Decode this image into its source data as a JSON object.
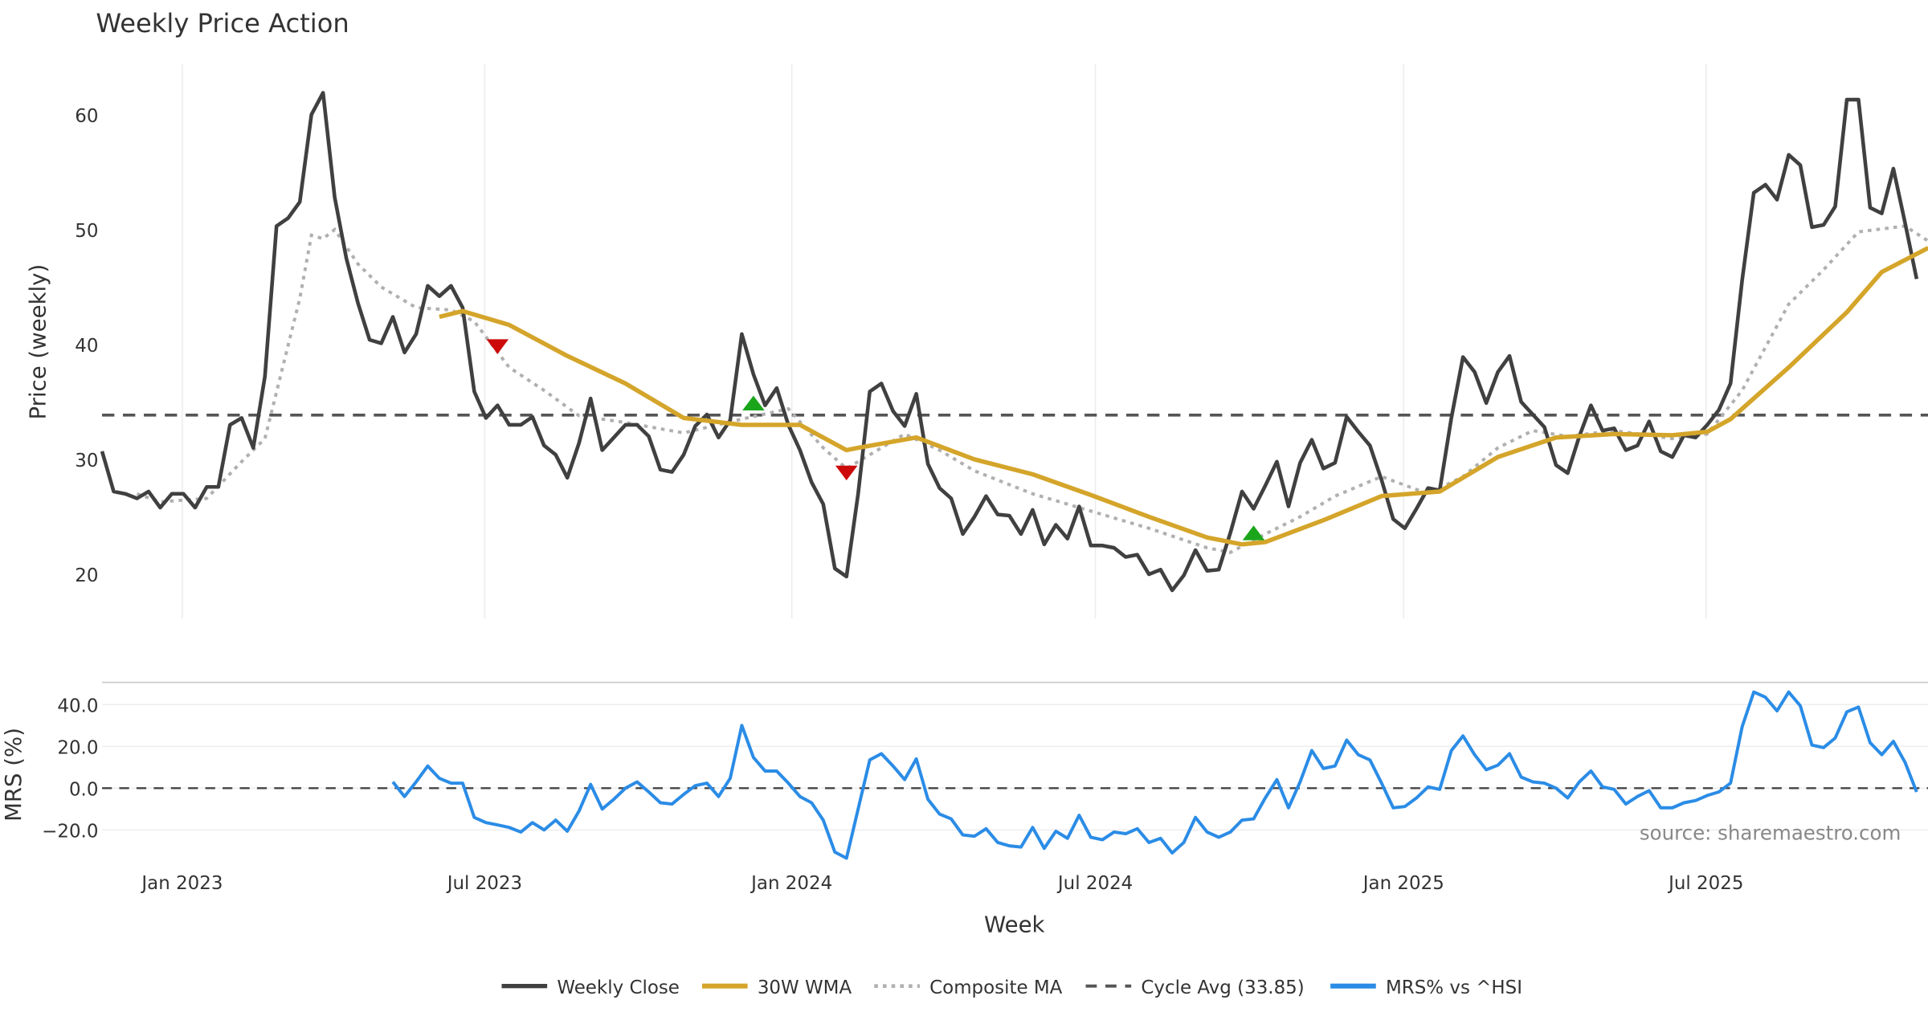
{
  "chart_data": [
    {
      "type": "line",
      "title": "Weekly Price Action",
      "xlabel": "",
      "ylabel": "Price (weekly)",
      "ylim": [
        16.15,
        64.4
      ],
      "yticks": [
        20,
        30,
        40,
        50,
        60
      ],
      "grid": "vertical",
      "x_unit": "week index",
      "weekly_close": [
        30.7,
        27.2,
        27.0,
        26.6,
        27.2,
        25.8,
        27.0,
        27.0,
        25.8,
        27.6,
        27.6,
        33.0,
        33.6,
        31.0,
        37.2,
        50.3,
        51.0,
        52.4,
        60.0,
        61.9,
        52.8,
        47.5,
        43.6,
        40.4,
        40.1,
        42.4,
        39.3,
        40.9,
        45.1,
        44.2,
        45.1,
        43.2,
        35.9,
        33.6,
        34.7,
        33.0,
        33.0,
        33.7,
        31.2,
        30.4,
        28.4,
        31.4,
        35.3,
        30.8,
        31.9,
        33.0,
        33.0,
        32.0,
        29.1,
        28.9,
        30.4,
        32.9,
        33.9,
        31.9,
        33.4,
        40.9,
        37.4,
        34.7,
        36.2,
        33.0,
        30.8,
        28.0,
        26.1,
        20.5,
        19.8,
        27.0,
        35.9,
        36.6,
        34.2,
        32.9,
        35.7,
        29.6,
        27.5,
        26.6,
        23.5,
        25.0,
        26.8,
        25.2,
        25.1,
        23.5,
        25.6,
        22.6,
        24.3,
        23.1,
        25.9,
        22.5,
        22.5,
        22.3,
        21.5,
        21.7,
        20.0,
        20.4,
        18.6,
        19.9,
        22.1,
        20.3,
        20.4,
        23.6,
        27.2,
        25.7,
        27.7,
        29.8,
        25.9,
        29.7,
        31.7,
        29.2,
        29.7,
        33.7,
        32.4,
        31.2,
        28.2,
        24.8,
        24.0,
        25.7,
        27.5,
        27.3,
        33.6,
        38.9,
        37.6,
        34.9,
        37.6,
        39.0,
        35.0,
        33.9,
        32.8,
        29.5,
        28.8,
        32.0,
        34.7,
        32.5,
        32.7,
        30.8,
        31.2,
        33.3,
        30.7,
        30.2,
        32.1,
        31.9,
        33.0,
        34.3,
        36.6,
        45.6,
        53.2,
        53.9,
        52.6,
        56.5,
        55.6,
        50.2,
        50.4,
        52.0,
        61.3,
        61.3,
        51.9,
        51.4,
        55.3,
        50.6,
        45.7
      ],
      "wma_30w": [
        [
          29,
          42.4
        ],
        [
          31,
          42.9
        ],
        [
          35,
          41.7
        ],
        [
          40,
          39.0
        ],
        [
          45,
          36.6
        ],
        [
          50,
          33.6
        ],
        [
          55,
          33.0
        ],
        [
          60,
          33.0
        ],
        [
          64,
          30.8
        ],
        [
          65,
          31.0
        ],
        [
          70,
          31.9
        ],
        [
          75,
          30.0
        ],
        [
          80,
          28.7
        ],
        [
          85,
          26.9
        ],
        [
          90,
          25.0
        ],
        [
          95,
          23.2
        ],
        [
          98,
          22.6
        ],
        [
          100,
          22.8
        ],
        [
          105,
          24.7
        ],
        [
          110,
          26.8
        ],
        [
          115,
          27.2
        ],
        [
          120,
          30.2
        ],
        [
          125,
          31.9
        ],
        [
          130,
          32.2
        ],
        [
          135,
          32.1
        ],
        [
          138,
          32.4
        ],
        [
          140,
          33.5
        ],
        [
          145,
          38.0
        ],
        [
          150,
          42.8
        ],
        [
          153,
          46.3
        ],
        [
          157,
          48.4
        ]
      ],
      "composite_ma": [
        [
          3,
          27.0
        ],
        [
          5,
          26.3
        ],
        [
          9,
          26.6
        ],
        [
          12,
          29.8
        ],
        [
          14,
          31.8
        ],
        [
          17,
          44.0
        ],
        [
          18,
          49.5
        ],
        [
          19,
          49.2
        ],
        [
          20,
          50.0
        ],
        [
          22,
          47.0
        ],
        [
          24,
          45.0
        ],
        [
          27,
          43.2
        ],
        [
          30,
          43.0
        ],
        [
          32,
          42.0
        ],
        [
          35,
          38.0
        ],
        [
          38,
          36.0
        ],
        [
          41,
          33.8
        ],
        [
          45,
          33.2
        ],
        [
          50,
          32.3
        ],
        [
          55,
          33.5
        ],
        [
          59,
          34.4
        ],
        [
          62,
          31.0
        ],
        [
          64,
          29.2
        ],
        [
          67,
          31.0
        ],
        [
          69,
          32.2
        ],
        [
          72,
          30.8
        ],
        [
          75,
          29.0
        ],
        [
          80,
          27.0
        ],
        [
          85,
          25.5
        ],
        [
          90,
          24.0
        ],
        [
          95,
          22.3
        ],
        [
          97,
          21.9
        ],
        [
          100,
          23.5
        ],
        [
          103,
          25.0
        ],
        [
          106,
          26.8
        ],
        [
          110,
          28.5
        ],
        [
          114,
          27.0
        ],
        [
          117,
          28.5
        ],
        [
          120,
          31.0
        ],
        [
          123,
          32.5
        ],
        [
          126,
          32.0
        ],
        [
          130,
          32.5
        ],
        [
          135,
          31.8
        ],
        [
          138,
          32.2
        ],
        [
          141,
          36.0
        ],
        [
          145,
          43.5
        ],
        [
          148,
          46.5
        ],
        [
          151,
          49.8
        ],
        [
          155,
          50.3
        ],
        [
          157,
          49.0
        ]
      ],
      "cycle_avg": 33.85,
      "signals": [
        {
          "type": "sell",
          "week": 34,
          "price": 39.7
        },
        {
          "type": "buy",
          "week": 56,
          "price": 34.9
        },
        {
          "type": "sell",
          "week": 64,
          "price": 28.7
        },
        {
          "type": "buy",
          "week": 99,
          "price": 23.6
        }
      ]
    },
    {
      "type": "line",
      "xlabel": "Week",
      "ylabel": "MRS (%)",
      "ylim": [
        -34.7,
        50.6
      ],
      "yticks": [
        40.0,
        20.0,
        0.0,
        -20.0
      ],
      "ytick_labels": [
        "40.0",
        "20.0",
        "0.0",
        "−20.0"
      ],
      "xticks": [
        6.9,
        32.9,
        59.3,
        85.4,
        111.9,
        137.9
      ],
      "xtick_labels": [
        "Jan 2023",
        "Jul 2023",
        "Jan 2024",
        "Jul 2024",
        "Jan 2025",
        "Jul 2025"
      ],
      "mrs_start_week": 25,
      "mrs": [
        3,
        -4,
        3,
        10.6,
        4.7,
        2.4,
        2.4,
        -14,
        -16.5,
        -17.6,
        -18.8,
        -21,
        -16.5,
        -20,
        -15.3,
        -20.6,
        -11,
        1.8,
        -10,
        -5.3,
        0,
        3,
        -1.8,
        -7,
        -7.6,
        -3,
        1.2,
        2.4,
        -4,
        4.7,
        30,
        14.7,
        8.2,
        8.2,
        2.4,
        -4,
        -7,
        -15.3,
        -30.6,
        -33.5,
        -10,
        13.5,
        16.5,
        10.6,
        4.1,
        14,
        -5.3,
        -12.4,
        -14.7,
        -22.4,
        -23,
        -19.4,
        -26,
        -27.6,
        -28.2,
        -18.8,
        -28.8,
        -20.6,
        -24,
        -13,
        -23.5,
        -24.7,
        -21,
        -21.8,
        -19.4,
        -26,
        -24,
        -31,
        -26,
        -14,
        -21,
        -23.5,
        -21,
        -15.3,
        -14.7,
        -4.7,
        4.1,
        -9.4,
        3,
        18,
        9.4,
        10.6,
        23,
        16,
        13.5,
        2.4,
        -9.4,
        -8.8,
        -4.7,
        0.6,
        -0.6,
        18,
        25,
        16,
        8.8,
        11,
        16.5,
        5.3,
        3,
        2.4,
        0,
        -4.7,
        3,
        8.2,
        0.6,
        -0.6,
        -7.6,
        -4,
        -1.2,
        -9.4,
        -9.4,
        -7,
        -5.9,
        -3.5,
        -1.8,
        2.4,
        29.4,
        46,
        43.5,
        37,
        46,
        39.4,
        20.6,
        19.4,
        24,
        36.5,
        38.8,
        21.8,
        16,
        22.4,
        12.4,
        -1.8
      ],
      "annotation": "source: sharemaestro.com"
    }
  ],
  "legend": {
    "placement": "bottom-center",
    "items": [
      "Weekly Close",
      "30W WMA",
      "Composite MA",
      "Cycle Avg (33.85)",
      "MRS% vs ^HSI"
    ]
  },
  "colors": {
    "close": "#404040",
    "wma": "#d4a52a",
    "composite": "#b0b0b0",
    "cycle": "#555555",
    "mrs": "#2b8ce6",
    "sell": "#cc0a0a",
    "buy": "#1aa51a"
  }
}
